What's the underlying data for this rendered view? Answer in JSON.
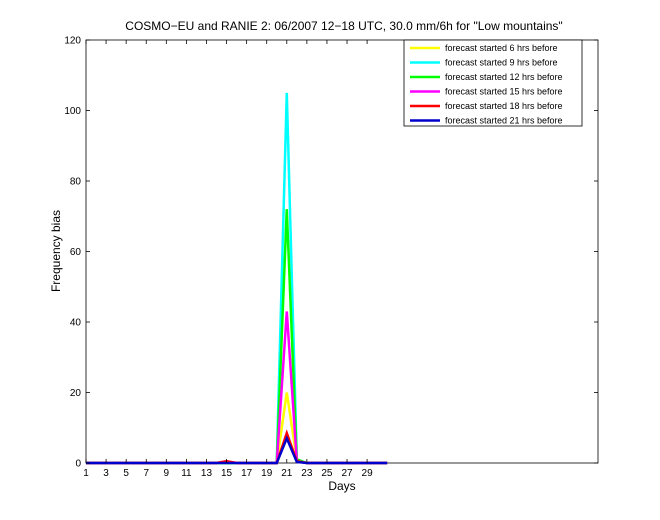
{
  "chart_data": {
    "type": "line",
    "title": "COSMO−EU and RANIE 2: 06/2007 12−18 UTC, 30.0 mm/6h for \"Low mountains\"",
    "xlabel": "Days",
    "ylabel": "Frequency bias",
    "xlim": [
      1,
      52
    ],
    "ylim": [
      0,
      120
    ],
    "xticks": [
      1,
      3,
      5,
      7,
      9,
      11,
      13,
      15,
      17,
      19,
      21,
      23,
      25,
      27,
      29
    ],
    "yticks": [
      0,
      20,
      40,
      60,
      80,
      100,
      120
    ],
    "grid": false,
    "legend_position": "top-right",
    "series": [
      {
        "name": "forecast started 6 hrs before",
        "color": "#ffff00",
        "x": [
          1,
          2,
          3,
          4,
          5,
          6,
          7,
          8,
          9,
          10,
          11,
          12,
          13,
          14,
          15,
          16,
          17,
          18,
          19,
          20,
          21,
          22,
          23,
          24,
          25,
          26,
          27,
          28,
          29,
          30,
          31
        ],
        "y": [
          0,
          0,
          0,
          0,
          0,
          0,
          0,
          0,
          0,
          0,
          0,
          0,
          0,
          0,
          0,
          0,
          0,
          0,
          0,
          0,
          20,
          1,
          0,
          0,
          0,
          0,
          0,
          0,
          0,
          0,
          0
        ]
      },
      {
        "name": "forecast started 9 hrs before",
        "color": "#00ffff",
        "x": [
          1,
          2,
          3,
          4,
          5,
          6,
          7,
          8,
          9,
          10,
          11,
          12,
          13,
          14,
          15,
          16,
          17,
          18,
          19,
          20,
          21,
          22,
          23,
          24,
          25,
          26,
          27,
          28,
          29,
          30,
          31
        ],
        "y": [
          0,
          0,
          0,
          0,
          0,
          0,
          0,
          0,
          0,
          0,
          0,
          0,
          0,
          0,
          0,
          0,
          0,
          0,
          0,
          0,
          105,
          1,
          0,
          0,
          0,
          0,
          0,
          0,
          0,
          0,
          0
        ]
      },
      {
        "name": "forecast started 12 hrs before",
        "color": "#00ff00",
        "x": [
          1,
          2,
          3,
          4,
          5,
          6,
          7,
          8,
          9,
          10,
          11,
          12,
          13,
          14,
          15,
          16,
          17,
          18,
          19,
          20,
          21,
          22,
          23,
          24,
          25,
          26,
          27,
          28,
          29,
          30,
          31
        ],
        "y": [
          0,
          0,
          0,
          0,
          0,
          0,
          0,
          0,
          0,
          0,
          0,
          0,
          0,
          0,
          0,
          0,
          0,
          0,
          0,
          0,
          72,
          1,
          0,
          0,
          0,
          0,
          0,
          0,
          0,
          0,
          0
        ]
      },
      {
        "name": "forecast started 15 hrs before",
        "color": "#ff00ff",
        "x": [
          1,
          2,
          3,
          4,
          5,
          6,
          7,
          8,
          9,
          10,
          11,
          12,
          13,
          14,
          15,
          16,
          17,
          18,
          19,
          20,
          21,
          22,
          23,
          24,
          25,
          26,
          27,
          28,
          29,
          30,
          31
        ],
        "y": [
          0,
          0,
          0,
          0,
          0,
          0,
          0,
          0,
          0,
          0,
          0,
          0,
          0,
          0,
          0.5,
          0,
          0,
          0,
          0,
          0,
          43,
          0.5,
          0,
          0,
          0,
          0,
          0,
          0,
          0,
          0,
          0
        ]
      },
      {
        "name": "forecast started 18 hrs before",
        "color": "#ff0000",
        "x": [
          1,
          2,
          3,
          4,
          5,
          6,
          7,
          8,
          9,
          10,
          11,
          12,
          13,
          14,
          15,
          16,
          17,
          18,
          19,
          20,
          21,
          22,
          23,
          24,
          25,
          26,
          27,
          28,
          29,
          30,
          31
        ],
        "y": [
          0,
          0,
          0,
          0,
          0,
          0,
          0,
          0,
          0,
          0,
          0,
          0,
          0,
          0,
          0.5,
          0,
          0,
          0,
          0,
          0,
          8.5,
          0.5,
          0,
          0,
          0,
          0,
          0,
          0,
          0,
          0,
          0
        ]
      },
      {
        "name": "forecast started 21 hrs before",
        "color": "#0000cc",
        "x": [
          1,
          2,
          3,
          4,
          5,
          6,
          7,
          8,
          9,
          10,
          11,
          12,
          13,
          14,
          15,
          16,
          17,
          18,
          19,
          20,
          21,
          22,
          23,
          24,
          25,
          26,
          27,
          28,
          29,
          30,
          31
        ],
        "y": [
          0,
          0,
          0,
          0,
          0,
          0,
          0,
          0,
          0,
          0,
          0,
          0,
          0,
          0,
          0,
          0,
          0,
          0,
          0,
          0,
          7,
          0.3,
          0,
          0,
          0,
          0,
          0,
          0,
          0,
          0,
          0
        ]
      }
    ]
  }
}
